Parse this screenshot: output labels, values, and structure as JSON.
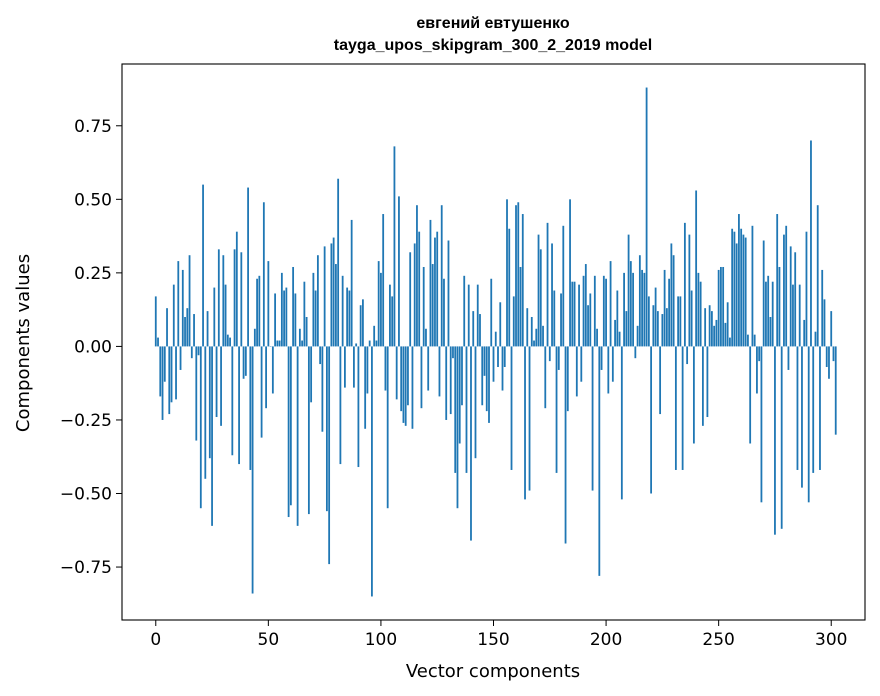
{
  "chart_data": {
    "type": "bar",
    "title_line1": "евгений евтушенко",
    "title_line2": "tayga_upos_skipgram_300_2_2019 model",
    "xlabel": "Vector components",
    "ylabel": "Components values",
    "xlim": [
      -15,
      315
    ],
    "ylim": [
      -0.93,
      0.96
    ],
    "xticks": [
      0,
      50,
      100,
      150,
      200,
      250,
      300
    ],
    "yticks": [
      -0.75,
      -0.5,
      -0.25,
      0.0,
      0.25,
      0.5,
      0.75
    ],
    "ytick_labels": [
      "−0.75",
      "−0.50",
      "−0.25",
      "0.00",
      "0.25",
      "0.50",
      "0.75"
    ],
    "bar_color": "#1f77b4",
    "grid": false,
    "values": [
      0.17,
      0.03,
      -0.17,
      -0.25,
      -0.12,
      0.13,
      -0.23,
      -0.19,
      0.21,
      -0.18,
      0.29,
      -0.08,
      0.26,
      0.1,
      0.13,
      0.31,
      -0.04,
      0.11,
      -0.32,
      -0.03,
      -0.55,
      0.55,
      -0.45,
      0.12,
      -0.38,
      -0.61,
      0.2,
      -0.24,
      0.33,
      -0.27,
      0.31,
      0.21,
      0.04,
      0.03,
      -0.37,
      0.33,
      0.39,
      -0.4,
      0.32,
      -0.11,
      -0.1,
      0.54,
      -0.42,
      -0.84,
      0.06,
      0.23,
      0.24,
      -0.31,
      0.49,
      -0.21,
      0.29,
      0.0,
      -0.16,
      0.18,
      0.02,
      0.02,
      0.25,
      0.19,
      0.2,
      -0.58,
      -0.54,
      0.27,
      0.18,
      -0.61,
      0.06,
      0.02,
      0.22,
      0.1,
      -0.57,
      -0.19,
      0.25,
      0.19,
      0.31,
      -0.06,
      -0.29,
      0.34,
      -0.56,
      -0.74,
      0.35,
      0.37,
      0.28,
      0.57,
      -0.4,
      0.24,
      -0.14,
      0.2,
      0.19,
      0.43,
      -0.14,
      0.01,
      -0.41,
      0.14,
      0.16,
      -0.28,
      -0.16,
      0.02,
      -0.85,
      0.07,
      0.02,
      0.29,
      0.25,
      0.45,
      -0.15,
      -0.55,
      0.21,
      0.17,
      0.68,
      -0.18,
      0.51,
      -0.22,
      -0.26,
      -0.27,
      -0.2,
      0.32,
      -0.28,
      0.35,
      0.48,
      0.39,
      -0.21,
      0.27,
      0.06,
      -0.15,
      0.43,
      0.28,
      0.37,
      0.39,
      -0.17,
      0.48,
      0.23,
      -0.25,
      0.36,
      -0.23,
      -0.04,
      -0.43,
      -0.55,
      -0.33,
      -0.2,
      0.24,
      -0.43,
      0.21,
      -0.66,
      0.12,
      -0.38,
      0.21,
      0.11,
      -0.2,
      -0.1,
      -0.22,
      -0.26,
      0.23,
      -0.12,
      0.05,
      -0.07,
      0.15,
      -0.15,
      -0.07,
      0.5,
      0.4,
      -0.42,
      0.17,
      0.48,
      0.49,
      0.27,
      0.45,
      -0.52,
      0.13,
      -0.49,
      0.1,
      0.02,
      0.06,
      0.38,
      0.33,
      0.07,
      -0.21,
      0.42,
      -0.05,
      0.35,
      0.19,
      -0.43,
      -0.08,
      0.18,
      0.41,
      -0.67,
      -0.22,
      0.5,
      0.22,
      0.22,
      -0.17,
      0.21,
      -0.12,
      0.24,
      0.28,
      0.14,
      0.18,
      -0.49,
      0.24,
      0.06,
      -0.78,
      -0.08,
      0.24,
      0.23,
      -0.16,
      0.29,
      -0.12,
      0.09,
      0.19,
      0.05,
      -0.52,
      0.25,
      0.12,
      0.38,
      0.29,
      0.25,
      -0.04,
      0.07,
      0.31,
      0.26,
      0.25,
      0.88,
      0.17,
      -0.5,
      0.14,
      0.2,
      0.12,
      -0.23,
      0.11,
      0.26,
      0.13,
      0.23,
      0.35,
      0.31,
      -0.42,
      0.17,
      0.17,
      -0.42,
      0.42,
      -0.06,
      0.38,
      0.19,
      -0.33,
      0.53,
      0.25,
      0.22,
      -0.27,
      0.13,
      -0.24,
      0.14,
      0.12,
      0.07,
      0.09,
      0.26,
      0.27,
      0.27,
      0.08,
      0.15,
      0.03,
      0.4,
      0.39,
      0.35,
      0.45,
      0.4,
      0.38,
      0.37,
      0.04,
      -0.33,
      0.41,
      0.04,
      -0.16,
      -0.05,
      -0.53,
      0.36,
      0.22,
      0.24,
      0.1,
      0.22,
      -0.64,
      0.45,
      0.27,
      -0.62,
      0.38,
      0.41,
      -0.08,
      0.34,
      0.21,
      0.32,
      -0.42,
      0.21,
      -0.48,
      0.09,
      0.39,
      -0.53,
      0.7,
      -0.43,
      0.05,
      0.48,
      -0.42,
      0.26,
      0.16,
      -0.07,
      -0.11,
      0.12,
      -0.05,
      -0.3
    ]
  }
}
